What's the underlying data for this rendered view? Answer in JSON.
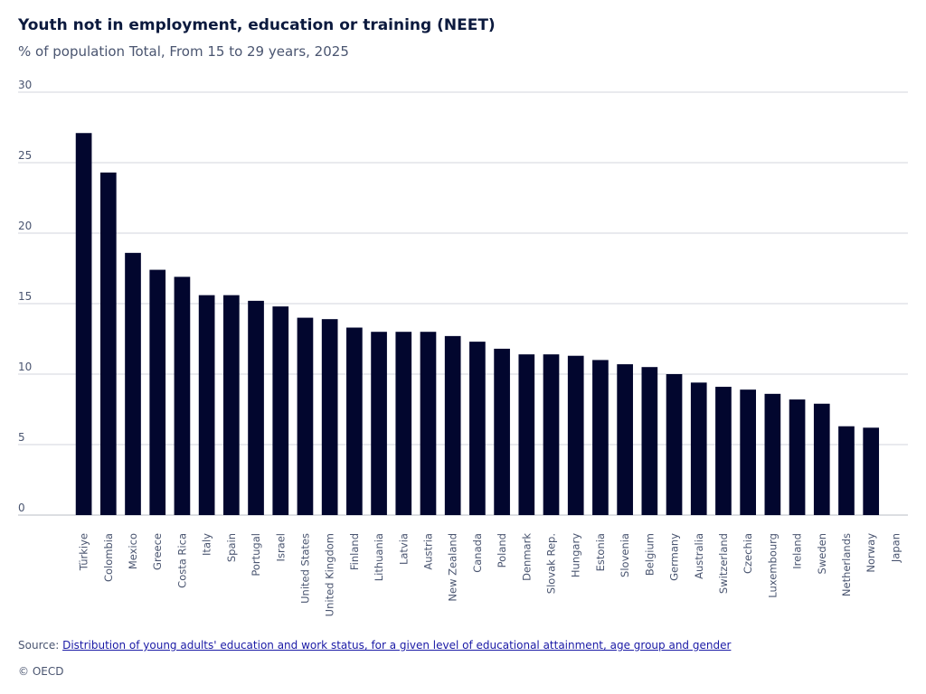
{
  "chart_data": {
    "type": "bar",
    "title": "Youth not in employment, education or training (NEET)",
    "subtitle": "% of population Total, From 15 to 29 years, 2025",
    "xlabel": "",
    "ylabel": "",
    "ylim": [
      0,
      30
    ],
    "yticks": [
      0,
      5,
      10,
      15,
      20,
      25,
      30
    ],
    "grid": true,
    "bar_color": "#02062e",
    "grid_color": "#d3d6dc",
    "categories": [
      "Türkiye",
      "Colombia",
      "Mexico",
      "Greece",
      "Costa Rica",
      "Italy",
      "Spain",
      "Portugal",
      "Israel",
      "United States",
      "United Kingdom",
      "Finland",
      "Lithuania",
      "Latvia",
      "Austria",
      "New Zealand",
      "Canada",
      "Poland",
      "Denmark",
      "Slovak Rep.",
      "Hungary",
      "Estonia",
      "Slovenia",
      "Belgium",
      "Germany",
      "Australia",
      "Switzerland",
      "Czechia",
      "Luxembourg",
      "Ireland",
      "Sweden",
      "Netherlands",
      "Norway",
      "Japan"
    ],
    "values": [
      27.1,
      24.3,
      18.6,
      17.4,
      16.9,
      15.6,
      15.6,
      15.2,
      14.8,
      14.0,
      13.9,
      13.3,
      13.0,
      13.0,
      13.0,
      12.7,
      12.3,
      11.8,
      11.4,
      11.4,
      11.3,
      11.0,
      10.7,
      10.5,
      10.0,
      9.4,
      9.1,
      8.9,
      8.6,
      8.2,
      7.9,
      6.3,
      6.2,
      null
    ]
  },
  "source": {
    "prefix": "Source: ",
    "link_text": "Distribution of young adults' education and work status, for a given level of educational attainment, age group and gender"
  },
  "copyright": "© OECD"
}
